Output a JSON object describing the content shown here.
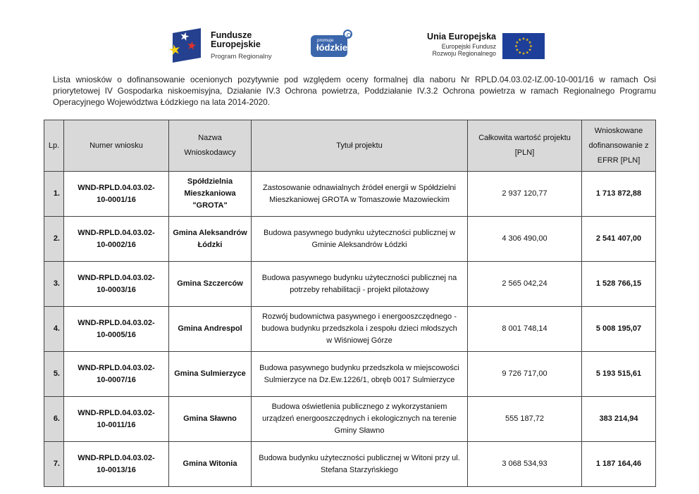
{
  "logos": {
    "fundusze": {
      "title_line1": "Fundusze",
      "title_line2": "Europejskie",
      "subtitle": "Program Regionalny",
      "flag_color": "#24408e",
      "star_colors": [
        "#ffffff",
        "#f7d117",
        "#e03227"
      ]
    },
    "lodzkie": {
      "small_label": "promuje",
      "big_label": "łódzkie",
      "badge_color": "#3b66ac"
    },
    "eu": {
      "title": "Unia Europejska",
      "subtitle_line1": "Europejski Fundusz",
      "subtitle_line2": "Rozwoju Regionalnego",
      "flag_color": "#1e3f99",
      "star_color": "#ffcc00"
    }
  },
  "intro_text": "Lista wniosków o dofinansowanie ocenionych pozytywnie pod względem oceny formalnej dla naboru Nr RPLD.04.03.02-IZ.00-10-001/16 w ramach Osi priorytetowej  IV Gospodarka niskoemisyjna, Działanie IV.3 Ochrona powietrza, Poddziałanie IV.3.2 Ochrona powietrza w ramach Regionalnego Programu Operacyjnego Województwa Łódzkiego na lata 2014-2020.",
  "table": {
    "headers": [
      "Lp.",
      "Numer wniosku",
      "Nazwa Wnioskodawcy",
      "Tytuł projektu",
      "Całkowita wartość projektu [PLN]",
      "Wnioskowane dofinansowanie z EFRR [PLN]"
    ],
    "rows": [
      {
        "lp": "1.",
        "numer": "WND-RPLD.04.03.02-10-0001/16",
        "nazwa": "Spółdzielnia Mieszkaniowa \"GROTA\"",
        "tytul": "Zastosowanie odnawialnych źródeł energii w Spółdzielni Mieszkaniowej GROTA w Tomaszowie Mazowieckim",
        "wartosc": "2 937 120,77",
        "dofinansowanie": "1 713 872,88"
      },
      {
        "lp": "2.",
        "numer": "WND-RPLD.04.03.02-10-0002/16",
        "nazwa": "Gmina Aleksandrów Łódzki",
        "tytul": "Budowa pasywnego budynku użyteczności publicznej w Gminie Aleksandrów Łódzki",
        "wartosc": "4 306 490,00",
        "dofinansowanie": "2 541 407,00"
      },
      {
        "lp": "3.",
        "numer": "WND-RPLD.04.03.02-10-0003/16",
        "nazwa": "Gmina Szczerców",
        "tytul": "Budowa pasywnego budynku użyteczności publicznej na potrzeby rehabilitacji - projekt pilotażowy",
        "wartosc": "2 565 042,24",
        "dofinansowanie": "1 528 766,15"
      },
      {
        "lp": "4.",
        "numer": "WND-RPLD.04.03.02-10-0005/16",
        "nazwa": "Gmina Andrespol",
        "tytul": "Rozwój budownictwa pasywnego i energooszczędnego - budowa budynku przedszkola i zespołu dzieci młodszych w Wiśniowej Górze",
        "wartosc": "8 001 748,14",
        "dofinansowanie": "5 008 195,07"
      },
      {
        "lp": "5.",
        "numer": "WND-RPLD.04.03.02-10-0007/16",
        "nazwa": "Gmina Sulmierzyce",
        "tytul": "Budowa pasywnego budynku przedszkola w miejscowości Sulmierzyce na Dz.Ew.1226/1, obręb 0017 Sulmierzyce",
        "wartosc": "9 726 717,00",
        "dofinansowanie": "5 193 515,61"
      },
      {
        "lp": "6.",
        "numer": "WND-RPLD.04.03.02-10-0011/16",
        "nazwa": "Gmina Sławno",
        "tytul": "Budowa oświetlenia publicznego z wykorzystaniem urządzeń energooszczędnych i ekologicznych na terenie Gminy Sławno",
        "wartosc": "555 187,72",
        "dofinansowanie": "383 214,94"
      },
      {
        "lp": "7.",
        "numer": "WND-RPLD.04.03.02-10-0013/16",
        "nazwa": "Gmina Witonia",
        "tytul": "Budowa budynku użyteczności publicznej w Witoni przy ul. Stefana Starzyńskiego",
        "wartosc": "3 068 534,93",
        "dofinansowanie": "1 187 164,46"
      }
    ]
  },
  "colors": {
    "table_header_bg": "#d9d9d9",
    "table_border": "#424242",
    "page_bg": "#ffffff"
  }
}
